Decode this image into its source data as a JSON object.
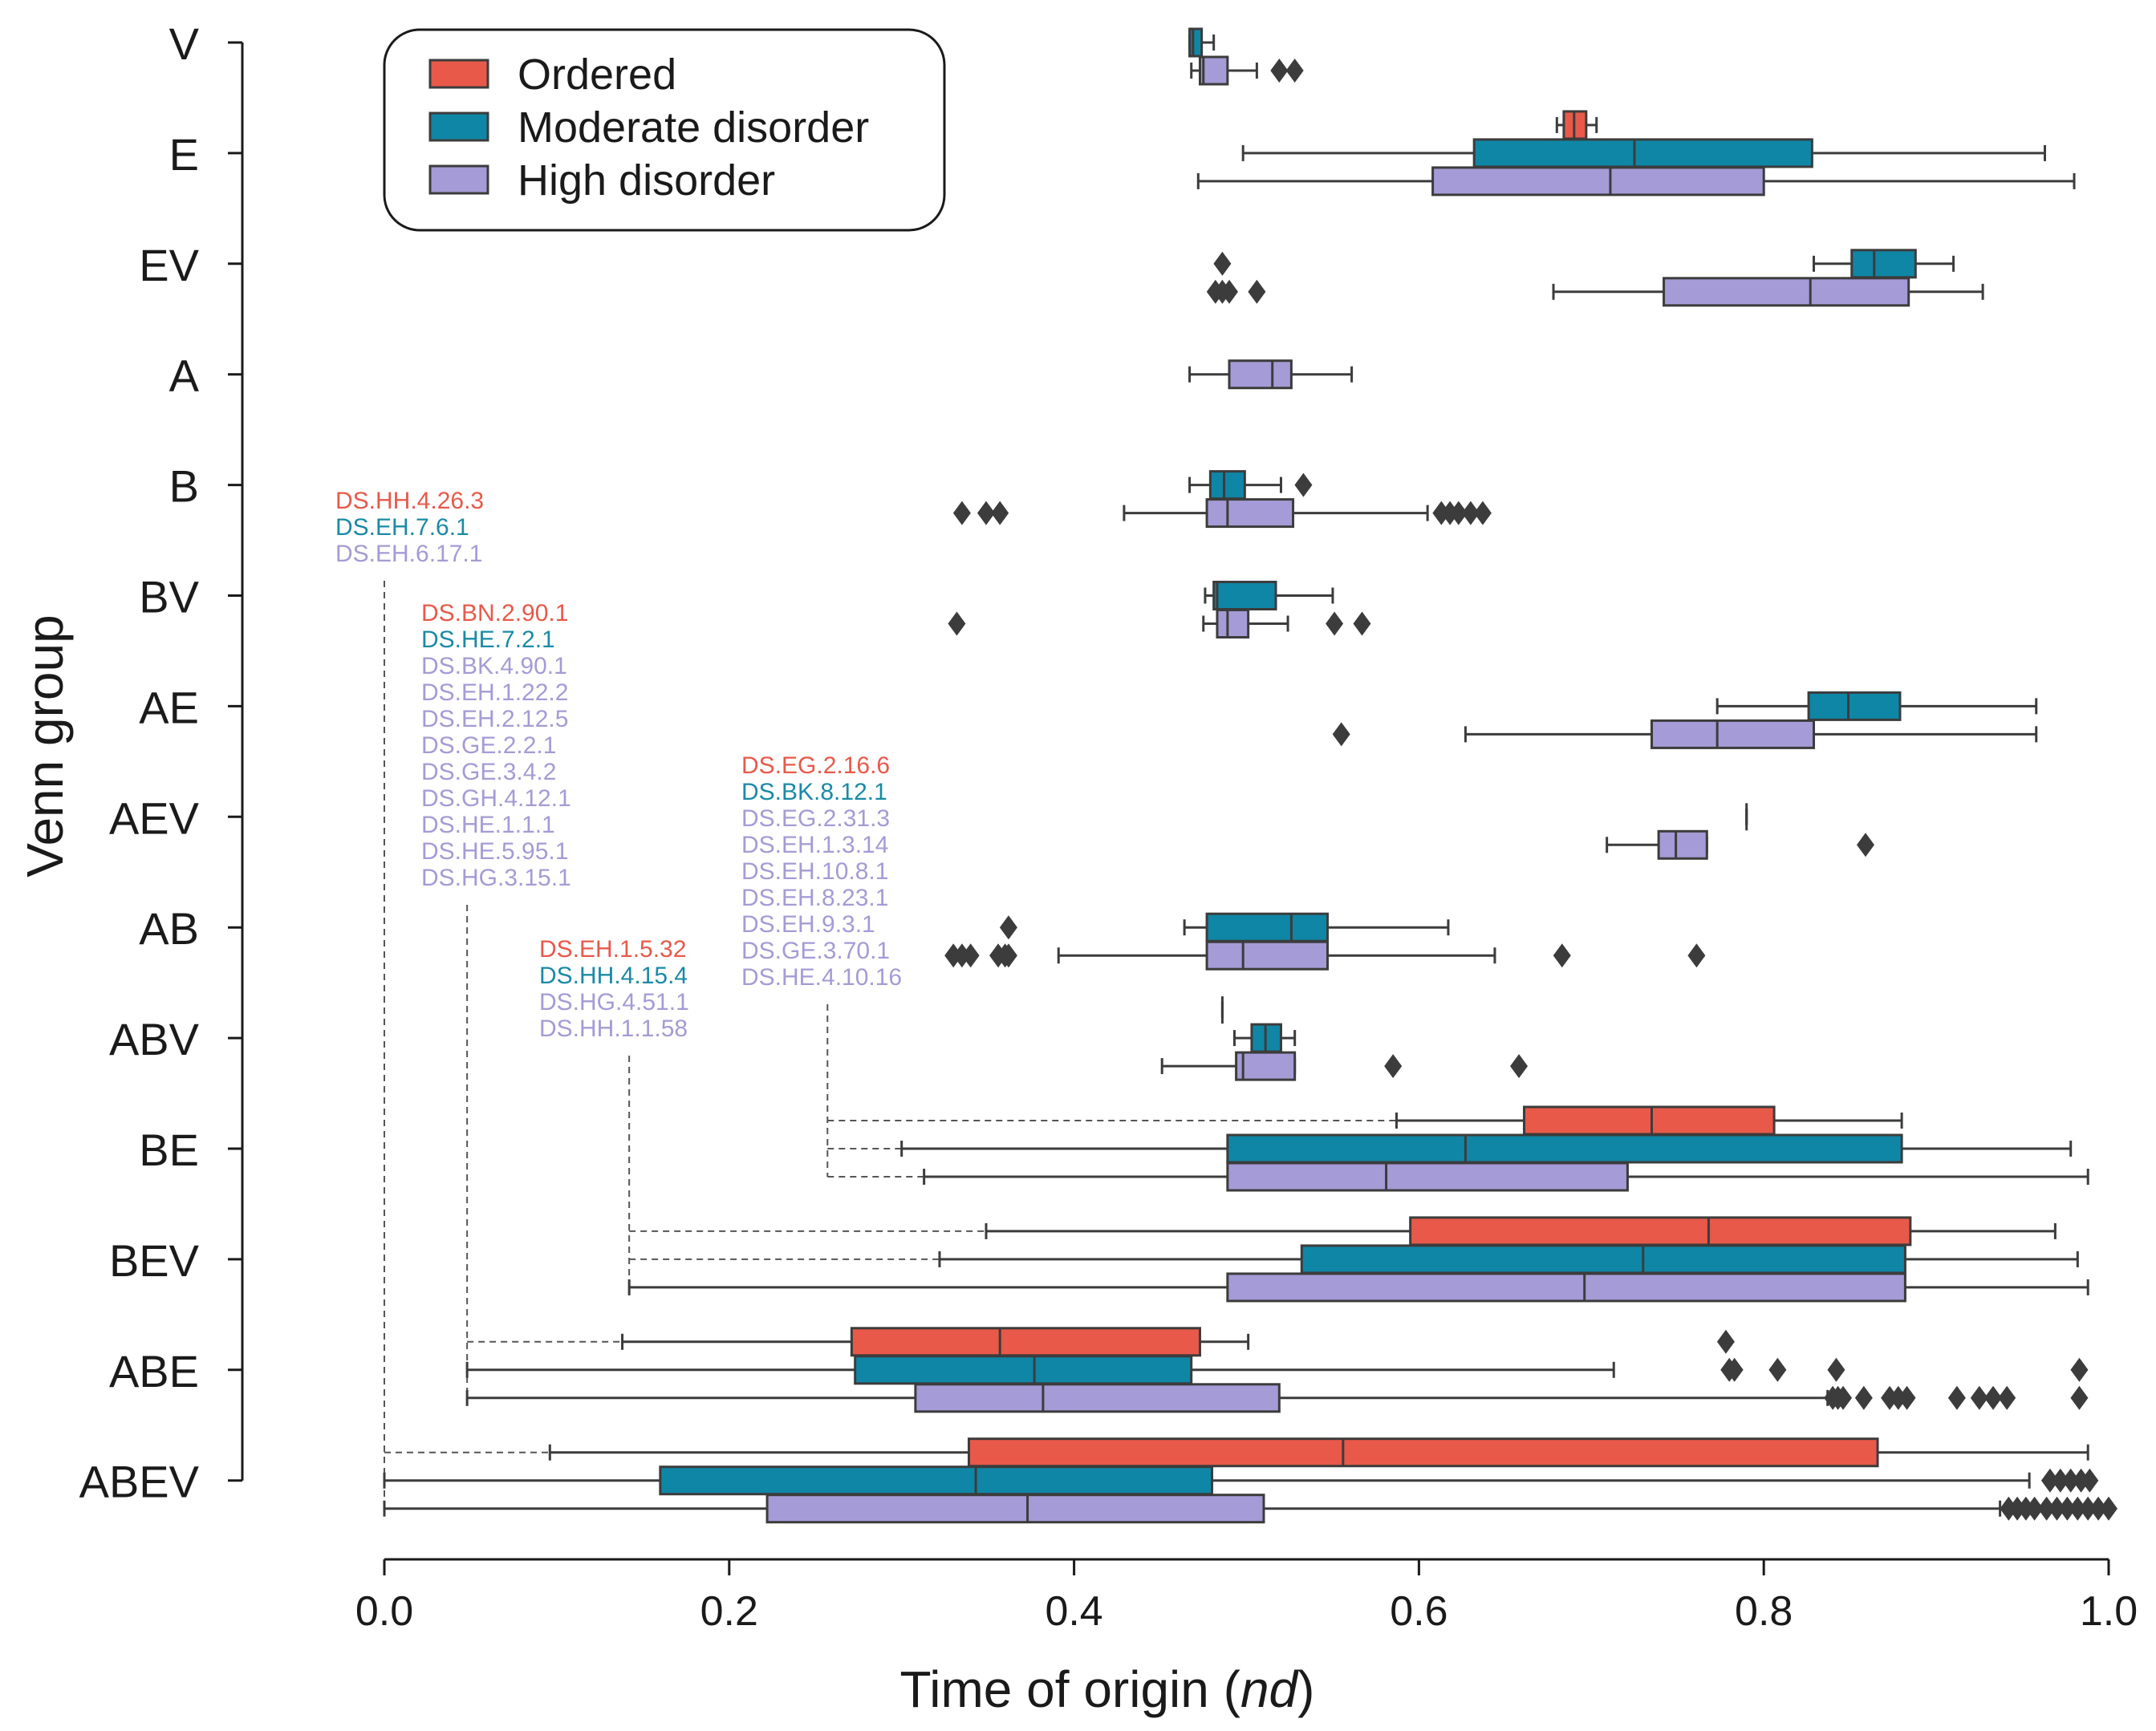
{
  "chart_data": {
    "type": "boxplot",
    "orientation": "horizontal",
    "xlabel": "Time of origin (",
    "xlabel_italic": "nd",
    "xlabel_close": ")",
    "ylabel": "Venn group",
    "xlim": [
      0.0,
      1.0
    ],
    "xticks": [
      "0.0",
      "0.2",
      "0.4",
      "0.6",
      "0.8",
      "1.0"
    ],
    "legend": {
      "placement": "top-left",
      "entries": [
        {
          "key": "ordered",
          "label": "Ordered"
        },
        {
          "key": "moderate",
          "label": "Moderate disorder"
        },
        {
          "key": "high",
          "label": "High disorder"
        }
      ]
    },
    "colors": {
      "ordered": "#e8594a",
      "moderate": "#0f86a6",
      "high": "#a59bd6",
      "stroke": "#3c3c3c",
      "label_ordered": "#e8594a",
      "label_moderate": "#1a8aa6",
      "label_high": "#a59bd6"
    },
    "groups": [
      {
        "name": "V",
        "boxes": [
          {
            "series": "moderate",
            "slot": 0,
            "q1": 0.467,
            "median": 0.469,
            "q3": 0.474,
            "whislo": 0.467,
            "whishi": 0.481,
            "fliers": []
          },
          {
            "series": "high",
            "slot": 1,
            "q1": 0.473,
            "median": 0.475,
            "q3": 0.489,
            "whislo": 0.468,
            "whishi": 0.506,
            "fliers": [
              0.519,
              0.528
            ]
          }
        ]
      },
      {
        "name": "E",
        "boxes": [
          {
            "series": "ordered",
            "slot": -1,
            "q1": 0.684,
            "median": 0.69,
            "q3": 0.697,
            "whislo": 0.68,
            "whishi": 0.703,
            "fliers": []
          },
          {
            "series": "moderate",
            "slot": 0,
            "q1": 0.632,
            "median": 0.725,
            "q3": 0.828,
            "whislo": 0.498,
            "whishi": 0.963,
            "fliers": []
          },
          {
            "series": "high",
            "slot": 1,
            "q1": 0.608,
            "median": 0.711,
            "q3": 0.8,
            "whislo": 0.472,
            "whishi": 0.98,
            "fliers": []
          }
        ]
      },
      {
        "name": "EV",
        "boxes": [
          {
            "series": "moderate",
            "slot": 0,
            "q1": 0.851,
            "median": 0.864,
            "q3": 0.888,
            "whislo": 0.829,
            "whishi": 0.91,
            "fliers": [
              0.486
            ]
          },
          {
            "series": "high",
            "slot": 1,
            "q1": 0.742,
            "median": 0.827,
            "q3": 0.884,
            "whislo": 0.678,
            "whishi": 0.927,
            "fliers": [
              0.482,
              0.486,
              0.49,
              0.506
            ]
          }
        ]
      },
      {
        "name": "A",
        "boxes": [
          {
            "series": "high",
            "slot": 0,
            "q1": 0.49,
            "median": 0.515,
            "q3": 0.526,
            "whislo": 0.467,
            "whishi": 0.561,
            "fliers": []
          }
        ]
      },
      {
        "name": "B",
        "boxes": [
          {
            "series": "moderate",
            "slot": 0,
            "q1": 0.479,
            "median": 0.487,
            "q3": 0.499,
            "whislo": 0.467,
            "whishi": 0.52,
            "fliers": [
              0.533
            ]
          },
          {
            "series": "high",
            "slot": 1,
            "q1": 0.477,
            "median": 0.489,
            "q3": 0.527,
            "whislo": 0.429,
            "whishi": 0.605,
            "fliers": [
              0.335,
              0.349,
              0.357,
              0.613,
              0.618,
              0.623,
              0.63,
              0.637
            ]
          }
        ]
      },
      {
        "name": "BV",
        "boxes": [
          {
            "series": "moderate",
            "slot": 0,
            "q1": 0.481,
            "median": 0.483,
            "q3": 0.517,
            "whislo": 0.476,
            "whishi": 0.55,
            "fliers": []
          },
          {
            "series": "high",
            "slot": 1,
            "q1": 0.483,
            "median": 0.489,
            "q3": 0.501,
            "whislo": 0.475,
            "whishi": 0.524,
            "fliers": [
              0.332,
              0.551,
              0.567
            ]
          }
        ]
      },
      {
        "name": "AE",
        "boxes": [
          {
            "series": "moderate",
            "slot": 0,
            "q1": 0.826,
            "median": 0.849,
            "q3": 0.879,
            "whislo": 0.773,
            "whishi": 0.958,
            "fliers": []
          },
          {
            "series": "high",
            "slot": 1,
            "q1": 0.735,
            "median": 0.773,
            "q3": 0.829,
            "whislo": 0.627,
            "whishi": 0.958,
            "fliers": [
              0.555
            ]
          }
        ]
      },
      {
        "name": "AEV",
        "boxes": [
          {
            "series": "moderate",
            "slot": 0,
            "q1": 0.79,
            "median": 0.79,
            "q3": 0.79,
            "whislo": 0.79,
            "whishi": 0.79,
            "fliers": []
          },
          {
            "series": "high",
            "slot": 1,
            "q1": 0.739,
            "median": 0.749,
            "q3": 0.767,
            "whislo": 0.709,
            "whishi": 0.767,
            "fliers": [
              0.859
            ]
          }
        ]
      },
      {
        "name": "AB",
        "boxes": [
          {
            "series": "moderate",
            "slot": 0,
            "q1": 0.477,
            "median": 0.526,
            "q3": 0.547,
            "whislo": 0.464,
            "whishi": 0.617,
            "fliers": [
              0.362
            ]
          },
          {
            "series": "high",
            "slot": 1,
            "q1": 0.477,
            "median": 0.498,
            "q3": 0.547,
            "whislo": 0.391,
            "whishi": 0.644,
            "fliers": [
              0.33,
              0.335,
              0.34,
              0.356,
              0.36,
              0.362,
              0.683,
              0.761
            ]
          }
        ]
      },
      {
        "name": "ABV",
        "boxes": [
          {
            "series": "ordered",
            "slot": -1,
            "q1": 0.486,
            "median": 0.486,
            "q3": 0.486,
            "whislo": 0.486,
            "whishi": 0.486,
            "fliers": []
          },
          {
            "series": "moderate",
            "slot": 0,
            "q1": 0.503,
            "median": 0.511,
            "q3": 0.52,
            "whislo": 0.493,
            "whishi": 0.528,
            "fliers": []
          },
          {
            "series": "high",
            "slot": 1,
            "q1": 0.494,
            "median": 0.498,
            "q3": 0.528,
            "whislo": 0.451,
            "whishi": 0.528,
            "fliers": [
              0.585,
              0.658
            ]
          }
        ]
      },
      {
        "name": "BE",
        "boxes": [
          {
            "series": "ordered",
            "slot": -1,
            "q1": 0.661,
            "median": 0.735,
            "q3": 0.806,
            "whislo": 0.587,
            "whishi": 0.88,
            "fliers": []
          },
          {
            "series": "moderate",
            "slot": 0,
            "q1": 0.489,
            "median": 0.627,
            "q3": 0.88,
            "whislo": 0.3,
            "whishi": 0.978,
            "fliers": []
          },
          {
            "series": "high",
            "slot": 1,
            "q1": 0.489,
            "median": 0.581,
            "q3": 0.721,
            "whislo": 0.313,
            "whishi": 0.988,
            "fliers": []
          }
        ]
      },
      {
        "name": "BEV",
        "boxes": [
          {
            "series": "ordered",
            "slot": -1,
            "q1": 0.595,
            "median": 0.768,
            "q3": 0.885,
            "whislo": 0.349,
            "whishi": 0.969,
            "fliers": []
          },
          {
            "series": "moderate",
            "slot": 0,
            "q1": 0.532,
            "median": 0.73,
            "q3": 0.882,
            "whislo": 0.322,
            "whishi": 0.982,
            "fliers": []
          },
          {
            "series": "high",
            "slot": 1,
            "q1": 0.489,
            "median": 0.696,
            "q3": 0.882,
            "whislo": 0.142,
            "whishi": 0.988,
            "fliers": []
          }
        ]
      },
      {
        "name": "ABE",
        "boxes": [
          {
            "series": "ordered",
            "slot": -1,
            "q1": 0.271,
            "median": 0.357,
            "q3": 0.473,
            "whislo": 0.138,
            "whishi": 0.501,
            "fliers": [
              0.778
            ]
          },
          {
            "series": "moderate",
            "slot": 0,
            "q1": 0.273,
            "median": 0.377,
            "q3": 0.468,
            "whislo": 0.048,
            "whishi": 0.713,
            "fliers": [
              0.78,
              0.783,
              0.808,
              0.842,
              0.983
            ]
          },
          {
            "series": "high",
            "slot": 1,
            "q1": 0.308,
            "median": 0.382,
            "q3": 0.519,
            "whislo": 0.048,
            "whishi": 0.837,
            "fliers": [
              0.84,
              0.843,
              0.846,
              0.858,
              0.873,
              0.878,
              0.883,
              0.912,
              0.925,
              0.933,
              0.941,
              0.983
            ]
          }
        ]
      },
      {
        "name": "ABEV",
        "boxes": [
          {
            "series": "ordered",
            "slot": -1,
            "q1": 0.339,
            "median": 0.556,
            "q3": 0.866,
            "whislo": 0.096,
            "whishi": 0.988,
            "fliers": []
          },
          {
            "series": "moderate",
            "slot": 0,
            "q1": 0.16,
            "median": 0.343,
            "q3": 0.48,
            "whislo": 0.0,
            "whishi": 0.954,
            "fliers": [
              0.966,
              0.972,
              0.978,
              0.984,
              0.989
            ]
          },
          {
            "series": "high",
            "slot": 1,
            "q1": 0.222,
            "median": 0.373,
            "q3": 0.51,
            "whislo": 0.0,
            "whishi": 0.937,
            "fliers": [
              0.942,
              0.947,
              0.952,
              0.957,
              0.964,
              0.97,
              0.976,
              0.982,
              0.988,
              0.994,
              1.0
            ]
          }
        ]
      }
    ],
    "annotations": [
      {
        "id": "abev",
        "group": "ABEV",
        "x": 0.0,
        "labels": [
          {
            "text": "DS.HH.4.26.3",
            "series": "ordered"
          },
          {
            "text": "DS.EH.7.6.1",
            "series": "moderate"
          },
          {
            "text": "DS.EH.6.17.1",
            "series": "high"
          }
        ]
      },
      {
        "id": "abe",
        "group": "ABE",
        "x": 0.048,
        "labels": [
          {
            "text": "DS.BN.2.90.1",
            "series": "ordered"
          },
          {
            "text": "DS.HE.7.2.1",
            "series": "moderate"
          },
          {
            "text": "DS.BK.4.90.1",
            "series": "high"
          },
          {
            "text": "DS.EH.1.22.2",
            "series": "high"
          },
          {
            "text": "DS.EH.2.12.5",
            "series": "high"
          },
          {
            "text": "DS.GE.2.2.1",
            "series": "high"
          },
          {
            "text": "DS.GE.3.4.2",
            "series": "high"
          },
          {
            "text": "DS.GH.4.12.1",
            "series": "high"
          },
          {
            "text": "DS.HE.1.1.1",
            "series": "high"
          },
          {
            "text": "DS.HE.5.95.1",
            "series": "high"
          },
          {
            "text": "DS.HG.3.15.1",
            "series": "high"
          }
        ]
      },
      {
        "id": "bev",
        "group": "BEV",
        "x": 0.142,
        "labels": [
          {
            "text": "DS.EH.1.5.32",
            "series": "ordered"
          },
          {
            "text": "DS.HH.4.15.4",
            "series": "moderate"
          },
          {
            "text": "DS.HG.4.51.1",
            "series": "high"
          },
          {
            "text": "DS.HH.1.1.58",
            "series": "high"
          }
        ]
      },
      {
        "id": "be",
        "group": "BE",
        "x": 0.257,
        "labels": [
          {
            "text": "DS.EG.2.16.6",
            "series": "ordered"
          },
          {
            "text": "DS.BK.8.12.1",
            "series": "moderate"
          },
          {
            "text": "DS.EG.2.31.3",
            "series": "high"
          },
          {
            "text": "DS.EH.1.3.14",
            "series": "high"
          },
          {
            "text": "DS.EH.10.8.1",
            "series": "high"
          },
          {
            "text": "DS.EH.8.23.1",
            "series": "high"
          },
          {
            "text": "DS.EH.9.3.1",
            "series": "high"
          },
          {
            "text": "DS.GE.3.70.1",
            "series": "high"
          },
          {
            "text": "DS.HE.4.10.16",
            "series": "high"
          }
        ]
      }
    ]
  }
}
